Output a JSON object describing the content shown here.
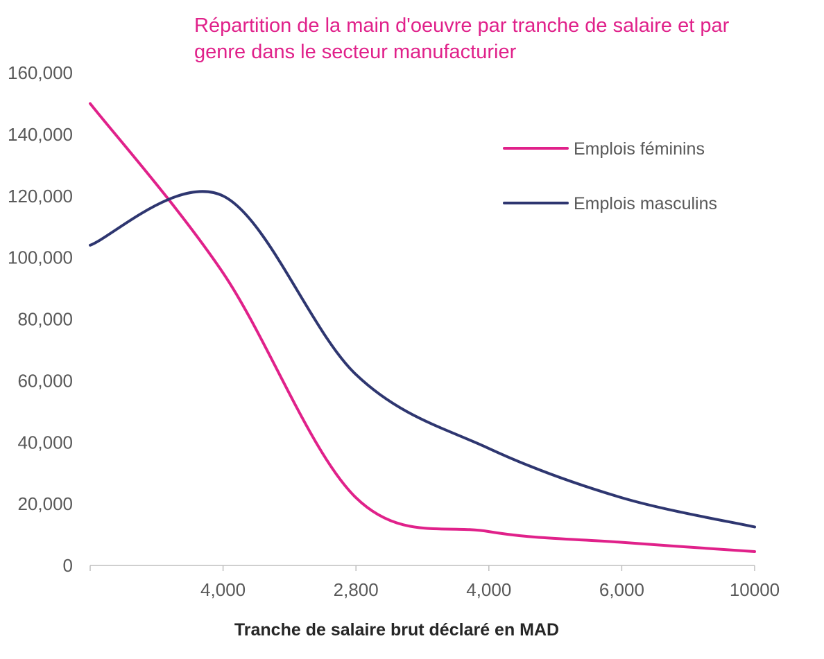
{
  "colors": {
    "title": "#e0218a",
    "series_femmes": "#e0218a",
    "series_hommes": "#2e3670",
    "axis": "#bfbfbf",
    "tick_text": "#595959"
  },
  "chart_data": {
    "type": "line",
    "title_lines": [
      "Répartition de la main d'oeuvre par tranche de salaire et par",
      "genre dans le secteur manufacturier"
    ],
    "xlabel": "Tranche de salaire brut déclaré en MAD",
    "ylabel": "",
    "x_tick_labels": [
      "4,000",
      "2,800",
      "4,000",
      "6,000",
      "10000"
    ],
    "y_ticks": [
      0,
      20000,
      40000,
      60000,
      80000,
      100000,
      120000,
      140000,
      160000
    ],
    "y_tick_labels": [
      "0",
      "20,000",
      "40,000",
      "60,000",
      "80,000",
      "100,000",
      "120,000",
      "140,000",
      "160,000"
    ],
    "ylim": [
      0,
      160000
    ],
    "grid": false,
    "smooth": true,
    "legend_position": "top-right",
    "series": [
      {
        "name": "Emplois féminins",
        "color": "#e0218a",
        "values": [
          150000,
          95000,
          22000,
          11000,
          7500,
          4500
        ]
      },
      {
        "name": "Emplois masculins",
        "color": "#2e3670",
        "values": [
          104000,
          120000,
          62000,
          38000,
          22000,
          12500
        ]
      }
    ]
  }
}
